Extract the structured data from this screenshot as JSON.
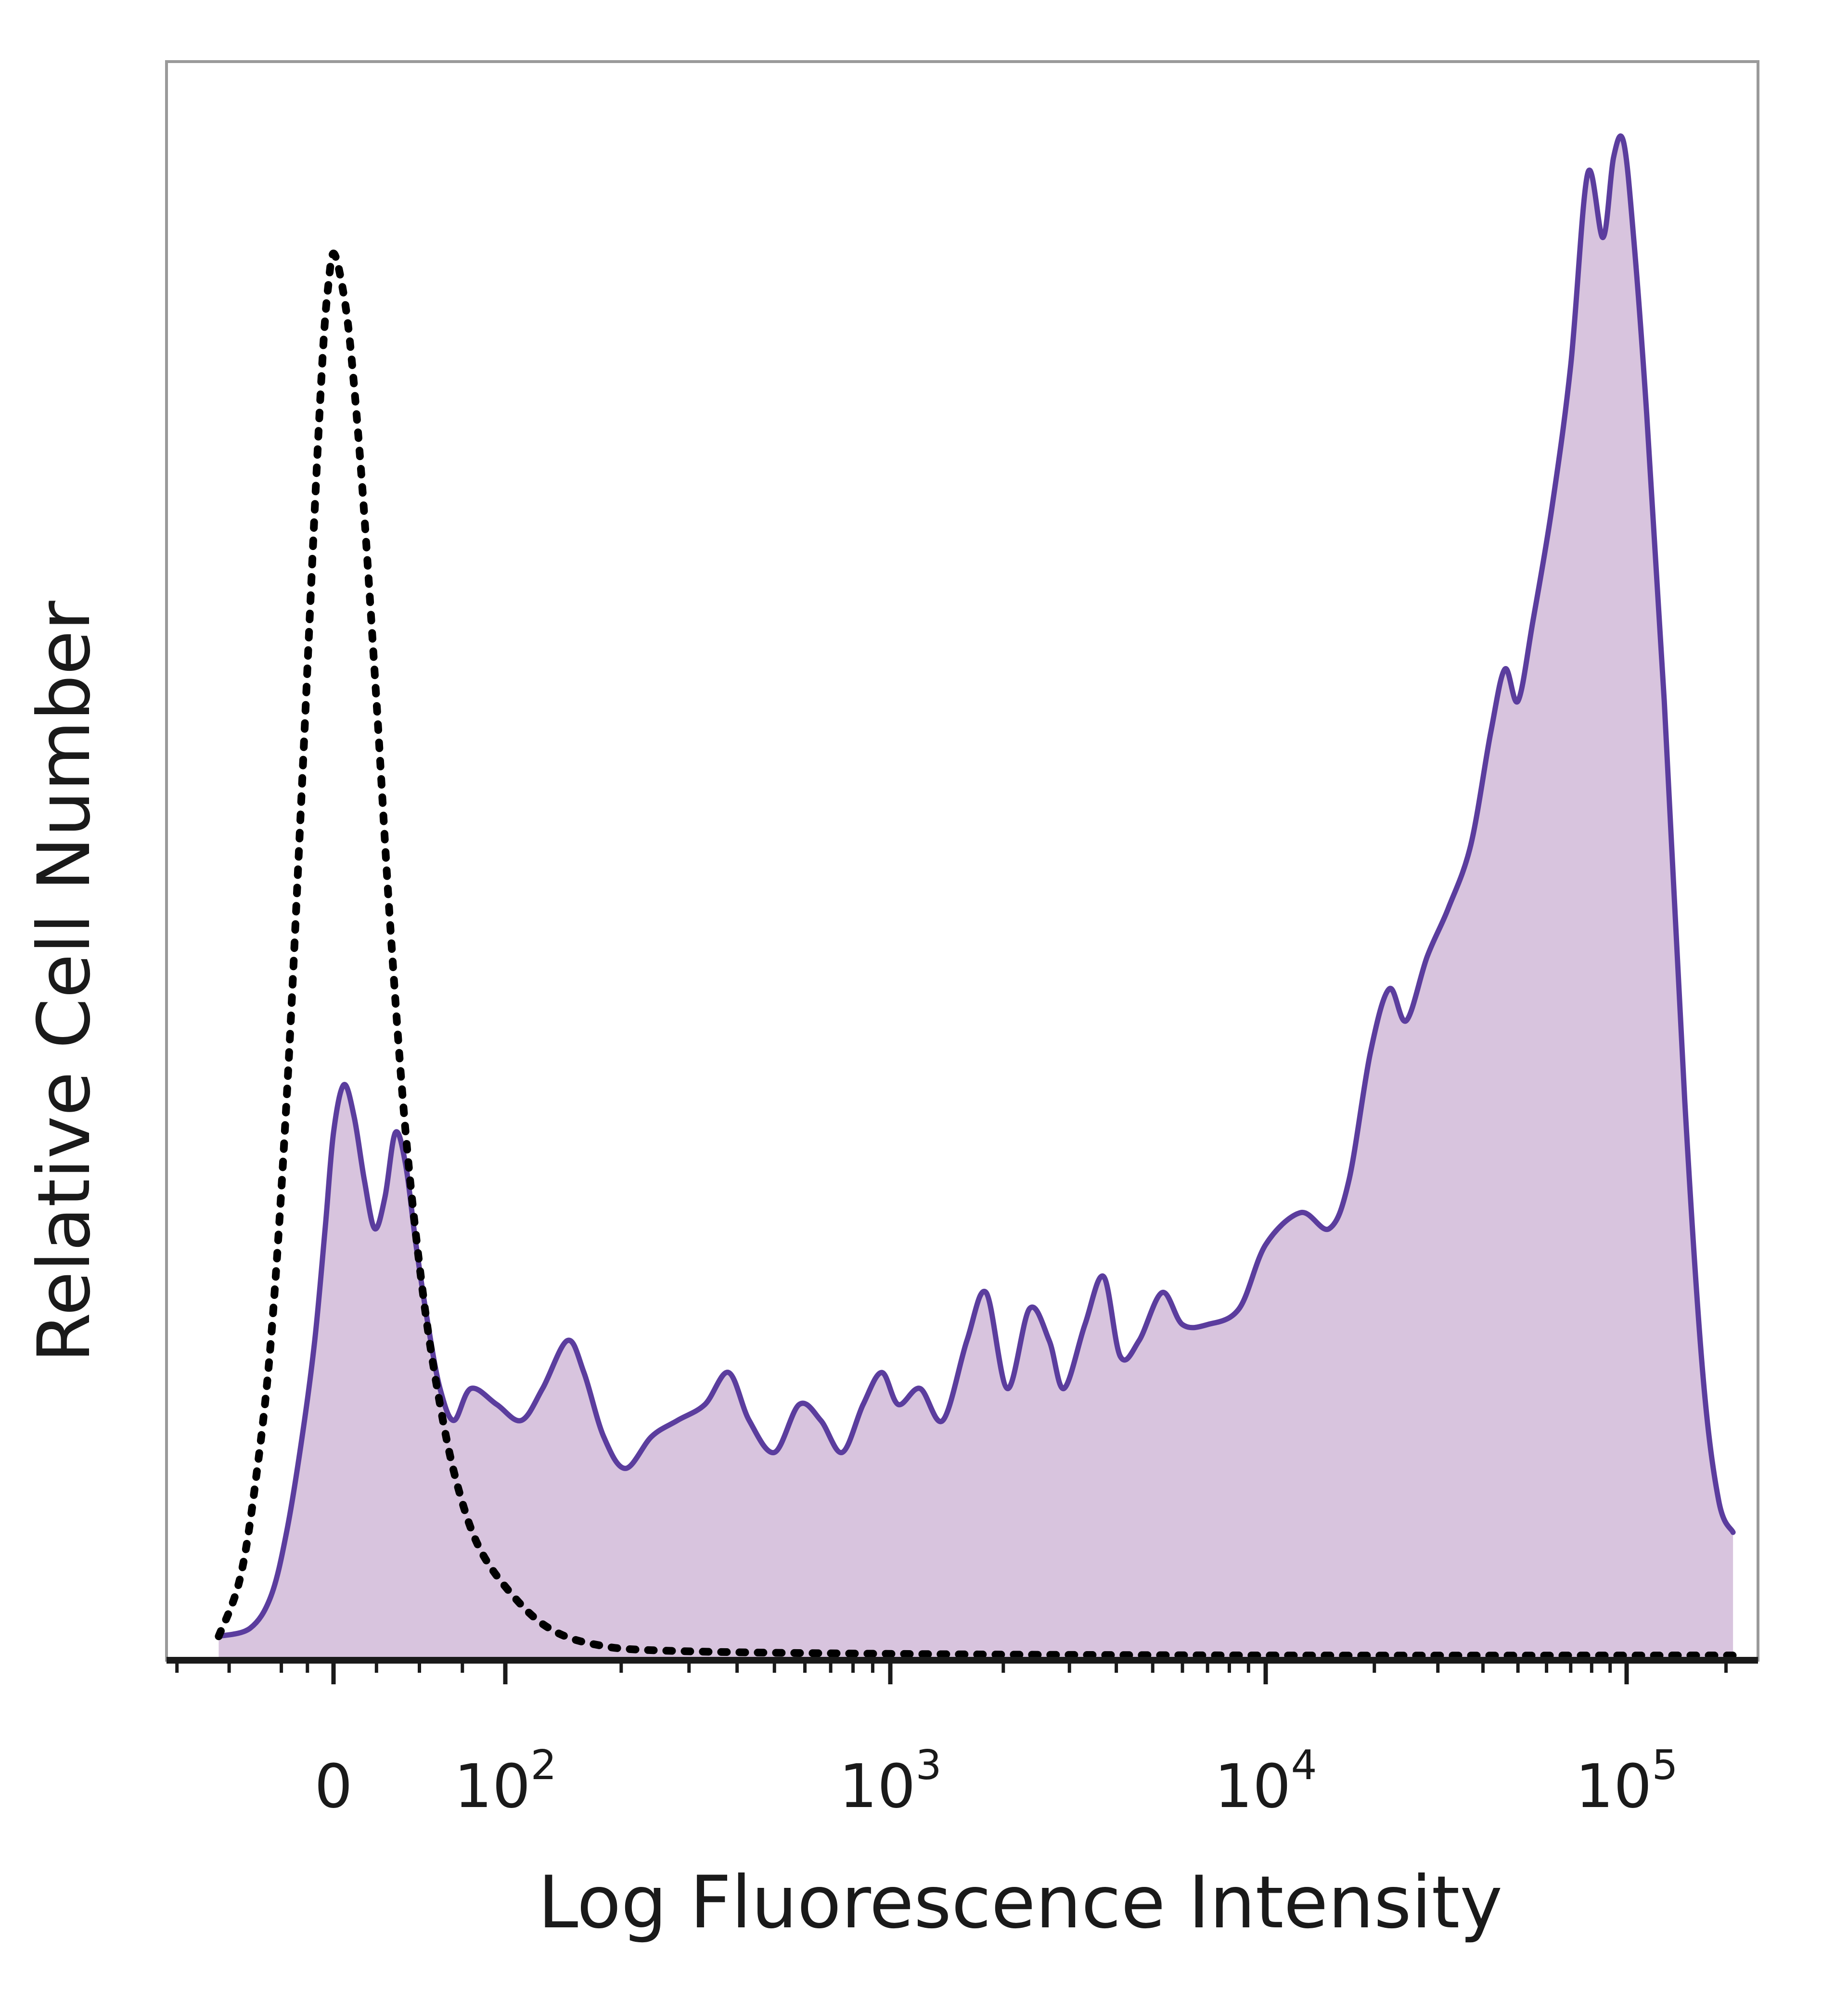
{
  "chart_data": {
    "type": "area",
    "title": "",
    "xlabel": "Log Fluorescence Intensity",
    "ylabel": "Relative Cell Number",
    "x_scale": "biexponential",
    "x_tick_labels": [
      {
        "value": 0,
        "base": "0",
        "exponent": ""
      },
      {
        "value": 100,
        "base": "10",
        "exponent": "2"
      },
      {
        "value": 1000,
        "base": "10",
        "exponent": "3"
      },
      {
        "value": 10000,
        "base": "10",
        "exponent": "4"
      },
      {
        "value": 100000,
        "base": "10",
        "exponent": "5"
      }
    ],
    "y_ticks_shown": false,
    "grid": false,
    "legend": "none",
    "colors": {
      "sample_line": "#5b3d9e",
      "sample_fill": "#d8c4de",
      "control_line": "#000000",
      "axis": "#1a1a1a",
      "frame": "#9a9a9a"
    },
    "series": [
      {
        "style": "filled-solid",
        "points": [
          [
            -110,
            1.5
          ],
          [
            -80,
            2
          ],
          [
            -60,
            4
          ],
          [
            -45,
            8
          ],
          [
            -30,
            14
          ],
          [
            -18,
            20
          ],
          [
            -8,
            27
          ],
          [
            0,
            33
          ],
          [
            6,
            36
          ],
          [
            12,
            34
          ],
          [
            18,
            30
          ],
          [
            24,
            27
          ],
          [
            30,
            29
          ],
          [
            36,
            33
          ],
          [
            42,
            31
          ],
          [
            48,
            26
          ],
          [
            55,
            21
          ],
          [
            62,
            17
          ],
          [
            70,
            15
          ],
          [
            80,
            17
          ],
          [
            95,
            16
          ],
          [
            110,
            15
          ],
          [
            125,
            17
          ],
          [
            145,
            20
          ],
          [
            160,
            18
          ],
          [
            180,
            14
          ],
          [
            205,
            12
          ],
          [
            240,
            14
          ],
          [
            280,
            15
          ],
          [
            330,
            16
          ],
          [
            380,
            18
          ],
          [
            430,
            15
          ],
          [
            500,
            13
          ],
          [
            580,
            16
          ],
          [
            660,
            15
          ],
          [
            750,
            13
          ],
          [
            850,
            16
          ],
          [
            950,
            18
          ],
          [
            1050,
            16
          ],
          [
            1200,
            17
          ],
          [
            1380,
            15
          ],
          [
            1600,
            20
          ],
          [
            1800,
            23
          ],
          [
            2050,
            17
          ],
          [
            2350,
            22
          ],
          [
            2650,
            20
          ],
          [
            2900,
            17
          ],
          [
            3300,
            21
          ],
          [
            3700,
            24
          ],
          [
            4100,
            19
          ],
          [
            4600,
            20
          ],
          [
            5300,
            23
          ],
          [
            6000,
            21
          ],
          [
            7000,
            21
          ],
          [
            8500,
            22
          ],
          [
            10000,
            26
          ],
          [
            12500,
            28
          ],
          [
            15000,
            27
          ],
          [
            17000,
            30
          ],
          [
            19500,
            38
          ],
          [
            22000,
            42
          ],
          [
            24500,
            40
          ],
          [
            28000,
            44
          ],
          [
            32000,
            47
          ],
          [
            37000,
            51
          ],
          [
            42000,
            58
          ],
          [
            46000,
            62
          ],
          [
            50000,
            60
          ],
          [
            55000,
            65
          ],
          [
            62000,
            72
          ],
          [
            70000,
            81
          ],
          [
            78000,
            93
          ],
          [
            86000,
            89
          ],
          [
            92000,
            94
          ],
          [
            98000,
            95
          ],
          [
            105000,
            89
          ],
          [
            115000,
            78
          ],
          [
            130000,
            60
          ],
          [
            150000,
            35
          ],
          [
            170000,
            18
          ],
          [
            190000,
            10
          ],
          [
            210000,
            8
          ]
        ]
      },
      {
        "style": "dotted-line",
        "points": [
          [
            -110,
            1.5
          ],
          [
            -90,
            5
          ],
          [
            -75,
            11
          ],
          [
            -60,
            20
          ],
          [
            -45,
            35
          ],
          [
            -30,
            55
          ],
          [
            -18,
            72
          ],
          [
            -10,
            82
          ],
          [
            -5,
            86
          ],
          [
            0,
            88
          ],
          [
            5,
            86
          ],
          [
            10,
            82
          ],
          [
            17,
            73
          ],
          [
            25,
            60
          ],
          [
            33,
            46
          ],
          [
            42,
            33
          ],
          [
            52,
            23
          ],
          [
            62,
            16
          ],
          [
            72,
            11
          ],
          [
            85,
            7
          ],
          [
            105,
            4
          ],
          [
            130,
            2
          ],
          [
            170,
            1
          ],
          [
            260,
            0.6
          ],
          [
            1000,
            0.4
          ],
          [
            10000,
            0.3
          ],
          [
            210000,
            0.3
          ]
        ]
      }
    ]
  }
}
